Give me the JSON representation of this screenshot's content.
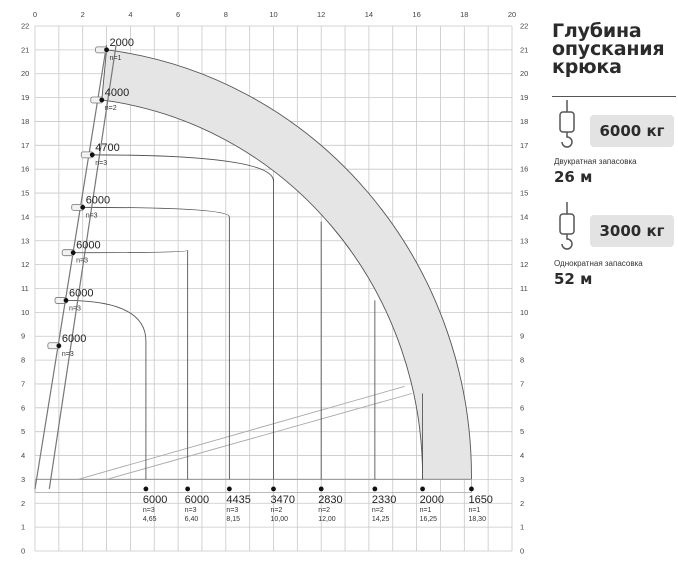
{
  "header": {
    "title_lines": [
      "Глубина",
      "опускания",
      "крюка"
    ]
  },
  "rigging": [
    {
      "load": "6000 кг",
      "label": "Двукратная запасовка",
      "depth": "26 м"
    },
    {
      "load": "3000 кг",
      "label": "Однократная запасовка",
      "depth": "52 м"
    }
  ],
  "colors": {
    "grid": "#c8c8c8",
    "band": "#e5e5e5",
    "curve": "#555555",
    "boom": "#777777",
    "point": "#111111"
  },
  "chart_data": {
    "type": "scatter",
    "x_axis": {
      "min": 0,
      "max": 20,
      "ticks": [
        0,
        2,
        4,
        6,
        8,
        10,
        12,
        14,
        16,
        18,
        20
      ]
    },
    "y_axis": {
      "min": 0,
      "max": 22,
      "ticks": [
        0,
        1,
        2,
        3,
        4,
        5,
        6,
        7,
        8,
        9,
        10,
        11,
        12,
        13,
        14,
        15,
        16,
        17,
        18,
        19,
        20,
        21,
        22
      ]
    },
    "grid": true,
    "boom_points": [
      {
        "label": "2000",
        "n": "n=1",
        "x": 3.0,
        "y": 21.0
      },
      {
        "label": "4000",
        "n": "n=2",
        "x": 2.8,
        "y": 18.9
      },
      {
        "label": "4700",
        "n": "n=3",
        "x": 2.4,
        "y": 16.6
      },
      {
        "label": "6000",
        "n": "n=3",
        "x": 2.0,
        "y": 14.4
      },
      {
        "label": "6000",
        "n": "n=3",
        "x": 1.6,
        "y": 12.5
      },
      {
        "label": "6000",
        "n": "n=3",
        "x": 1.3,
        "y": 10.5
      },
      {
        "label": "6000",
        "n": "n=3",
        "x": 1.0,
        "y": 8.6
      }
    ],
    "curves": [
      {
        "x0": 2.0,
        "y0": 14.4,
        "x1": 8.15,
        "y1": 14.0,
        "drop": 8.15
      },
      {
        "x0": 1.6,
        "y0": 12.5,
        "x1": 6.4,
        "y1": 12.6,
        "drop": 6.4
      },
      {
        "x0": 1.3,
        "y0": 10.5,
        "x1": 4.65,
        "y1": 8.8,
        "drop": 4.65
      }
    ],
    "drop_lines": [
      4.65,
      6.4,
      8.15,
      10.0,
      12.0,
      14.25,
      16.25,
      18.3
    ],
    "bottom_points": [
      {
        "label": "6000",
        "n": "n=3",
        "reach": "4,65",
        "x": 4.65
      },
      {
        "label": "6000",
        "n": "n=3",
        "reach": "6,40",
        "x": 6.4
      },
      {
        "label": "4435",
        "n": "n=3",
        "reach": "8,15",
        "x": 8.15
      },
      {
        "label": "3470",
        "n": "n=2",
        "reach": "10,00",
        "x": 10.0
      },
      {
        "label": "2830",
        "n": "n=2",
        "reach": "12,00",
        "x": 12.0
      },
      {
        "label": "2330",
        "n": "n=2",
        "reach": "14,25",
        "x": 14.25
      },
      {
        "label": "2000",
        "n": "n=1",
        "reach": "16,25",
        "x": 16.25
      },
      {
        "label": "1650",
        "n": "n=1",
        "reach": "18,30",
        "x": 18.3
      }
    ],
    "bottom_y": 2.6
  }
}
